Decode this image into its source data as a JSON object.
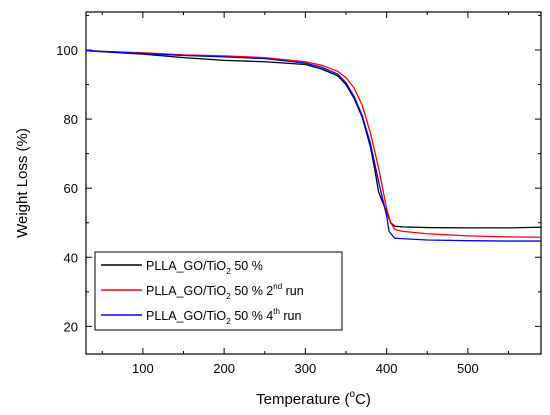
{
  "chart_data": {
    "type": "line",
    "xlabel": "Temperature (°C)",
    "xlabel_parts": [
      "Temperature (",
      "o",
      "C)"
    ],
    "ylabel": "Weight Loss (%)",
    "xlim": [
      30,
      590
    ],
    "ylim": [
      12,
      111
    ],
    "xticks": [
      100,
      200,
      300,
      400,
      500
    ],
    "yticks": [
      20,
      40,
      60,
      80,
      100
    ],
    "grid": false,
    "legend_position": "bottom-left",
    "series": [
      {
        "name": "PLLA_GO/TiO2 50 %",
        "label_parts": [
          "PLLA_GO/TiO",
          "2",
          " 50 %",
          "",
          ""
        ],
        "color": "#000000",
        "x": [
          30,
          50,
          100,
          150,
          200,
          250,
          300,
          320,
          340,
          350,
          360,
          370,
          380,
          385,
          390,
          395,
          400,
          405,
          410,
          420,
          450,
          500,
          550,
          590
        ],
        "y": [
          99.8,
          99.5,
          98.8,
          97.8,
          97.0,
          96.6,
          95.8,
          94.5,
          92.5,
          90.0,
          86.0,
          80.5,
          72.0,
          66.0,
          59.0,
          56.0,
          53.0,
          50.0,
          49.0,
          48.8,
          48.6,
          48.5,
          48.5,
          48.7
        ]
      },
      {
        "name": "PLLA_GO/TiO2 50 % 2nd run",
        "label_parts": [
          "PLLA_GO/TiO",
          "2",
          " 50 % 2",
          "nd",
          " run"
        ],
        "color": "#ff0000",
        "x": [
          30,
          50,
          100,
          150,
          200,
          250,
          300,
          320,
          340,
          350,
          360,
          370,
          380,
          390,
          395,
          400,
          405,
          410,
          420,
          450,
          500,
          550,
          590
        ],
        "y": [
          99.8,
          99.6,
          99.2,
          98.6,
          98.3,
          97.8,
          96.6,
          95.6,
          93.8,
          92.0,
          89.0,
          84.0,
          76.0,
          66.0,
          60.0,
          54.0,
          50.0,
          48.0,
          47.5,
          46.8,
          46.2,
          45.9,
          45.8
        ]
      },
      {
        "name": "PLLA_GO/TiO2 50 % 4th run",
        "label_parts": [
          "PLLA_GO/TiO",
          "2",
          " 50 % 4",
          "th",
          " run"
        ],
        "color": "#0000ff",
        "x": [
          30,
          50,
          100,
          150,
          200,
          250,
          300,
          320,
          340,
          350,
          360,
          370,
          380,
          385,
          390,
          395,
          400,
          403,
          410,
          450,
          500,
          550,
          590
        ],
        "y": [
          99.9,
          99.6,
          99.0,
          98.4,
          98.0,
          97.5,
          96.2,
          95.0,
          93.0,
          90.5,
          86.5,
          81.0,
          73.0,
          67.5,
          62.0,
          57.0,
          52.0,
          47.5,
          45.5,
          45.0,
          44.8,
          44.7,
          44.7
        ]
      }
    ]
  }
}
